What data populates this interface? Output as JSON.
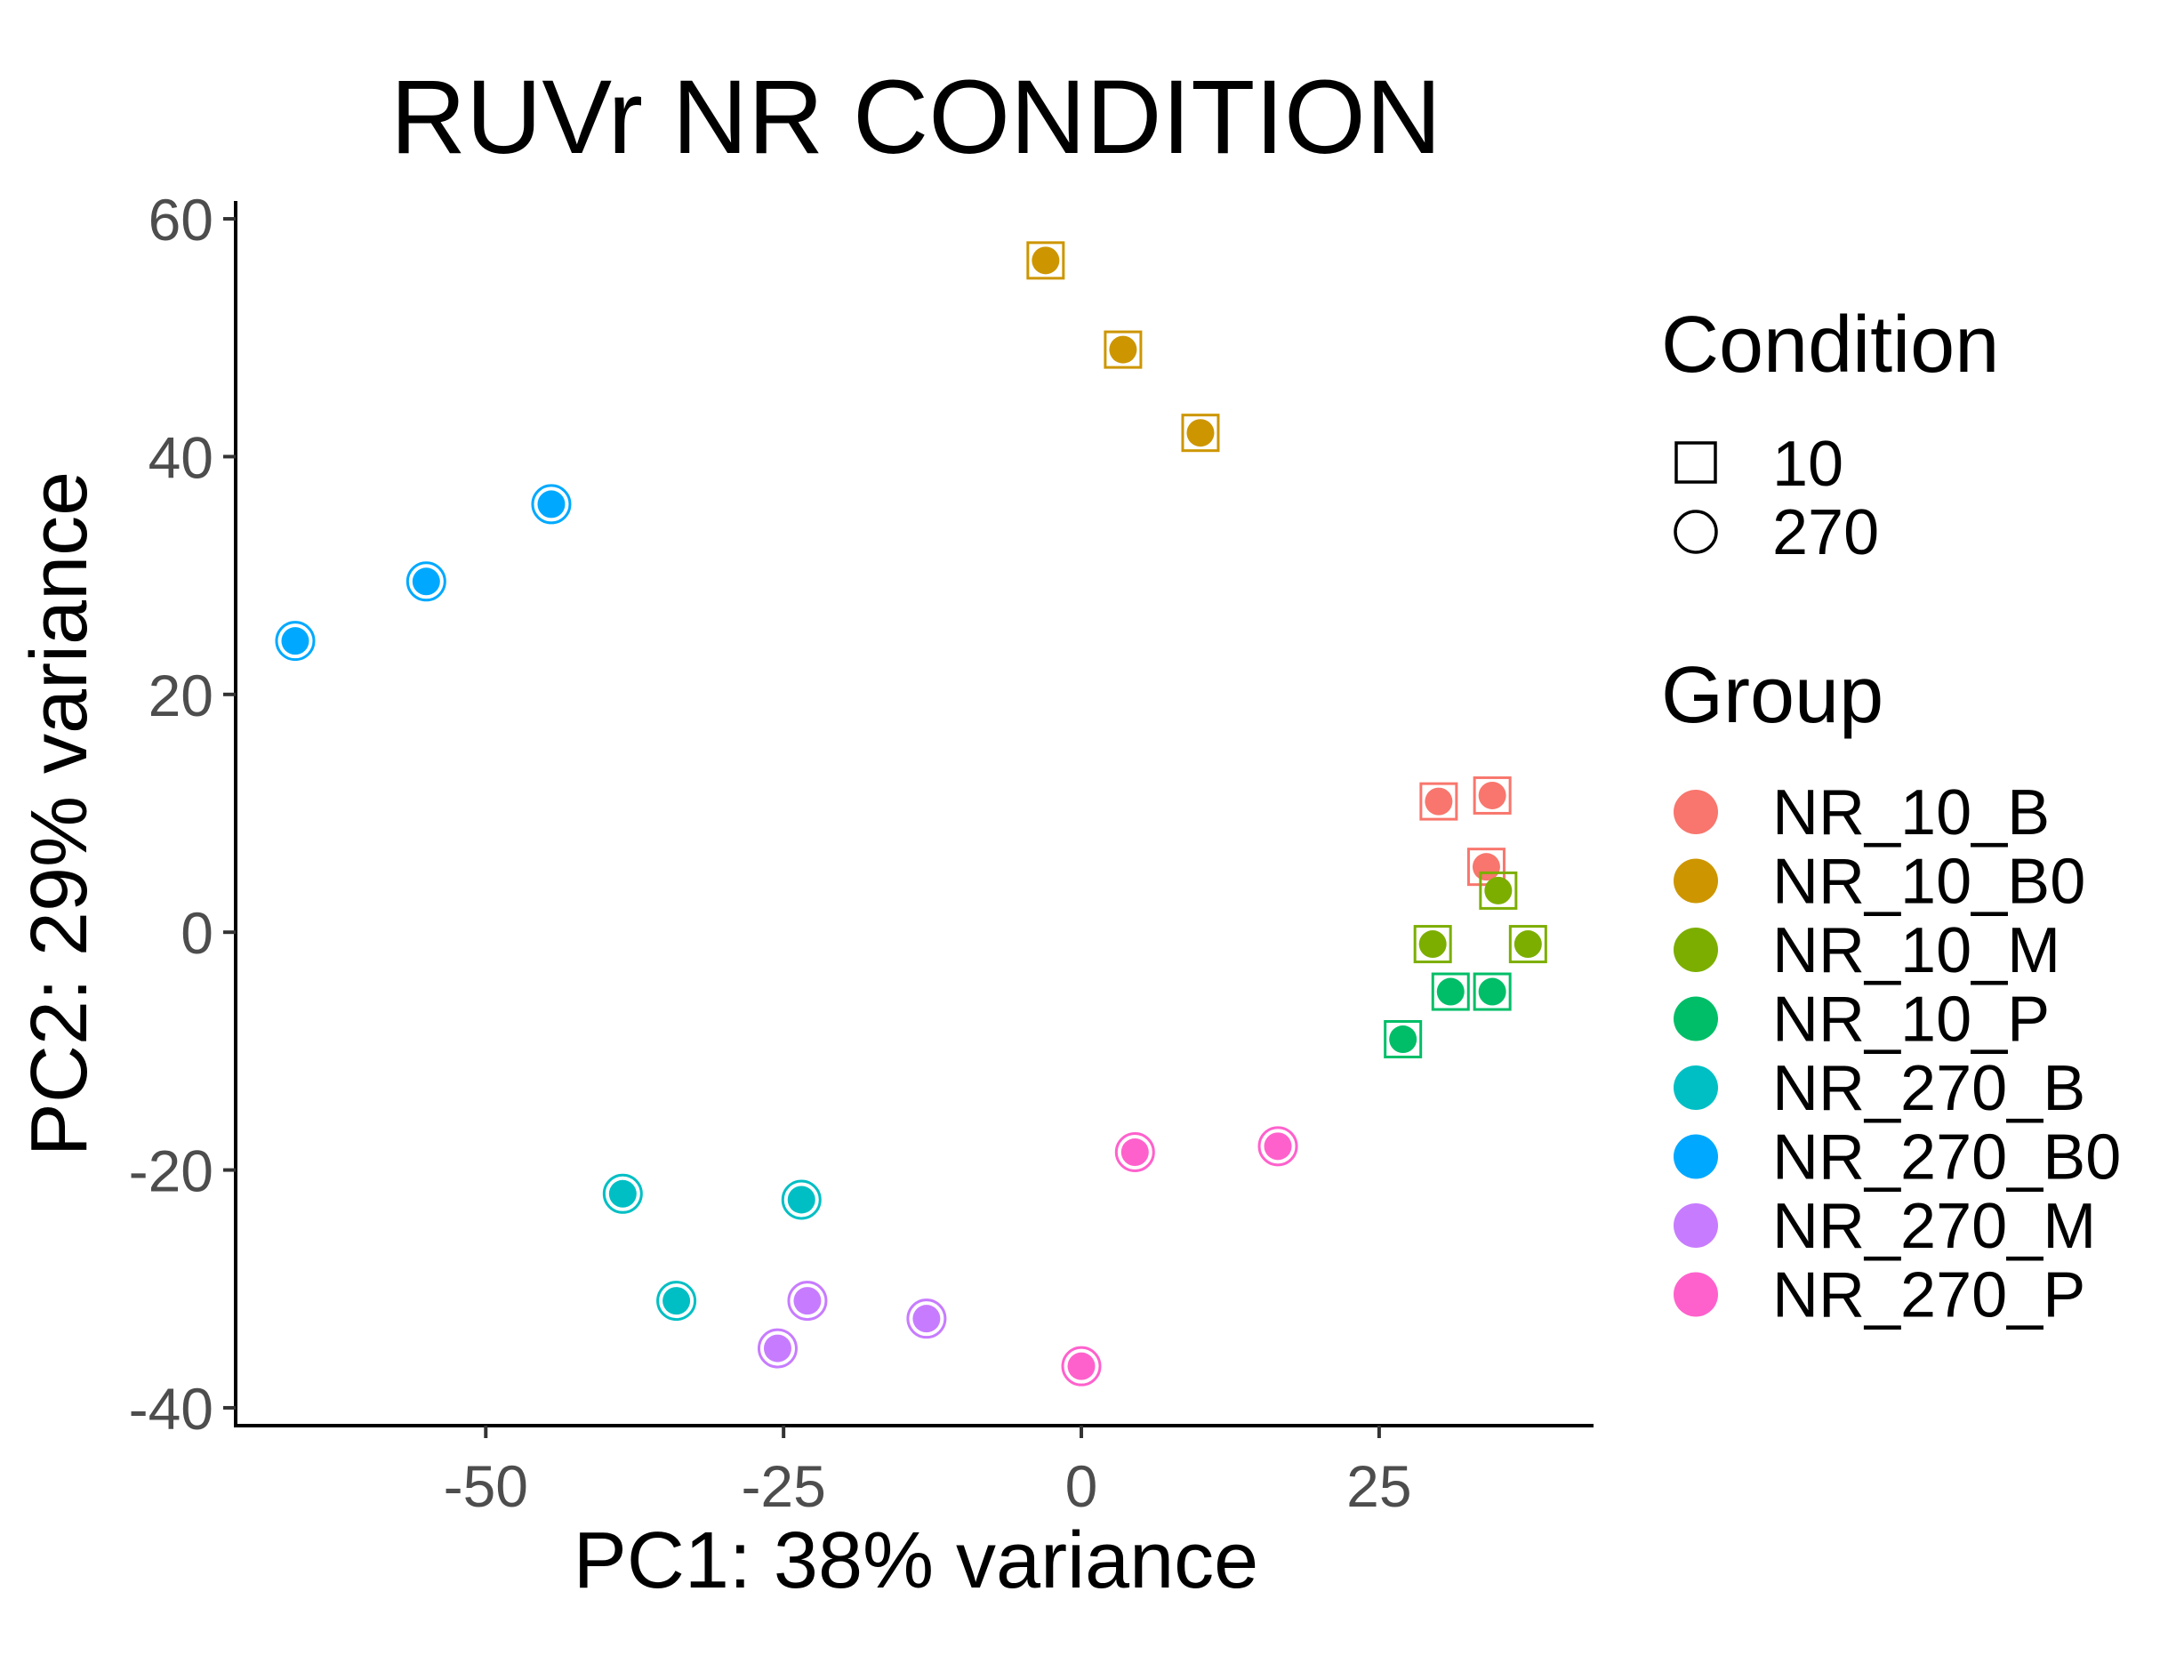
{
  "chart_data": {
    "type": "scatter",
    "title": "RUVr NR CONDITION",
    "xlabel": "PC1: 38% variance",
    "ylabel": "PC2: 29% variance",
    "xlim": [
      -71,
      43
    ],
    "ylim": [
      -41.5,
      61.5
    ],
    "xticks": [
      -50,
      -25,
      0,
      25
    ],
    "xtick_labels": [
      "-50",
      "-25",
      "0",
      "25"
    ],
    "yticks": [
      -40,
      -20,
      0,
      20,
      40,
      60
    ],
    "ytick_labels": [
      "-40",
      "-20",
      "0",
      "20",
      "40",
      "60"
    ],
    "grid": false,
    "legend_position": "right",
    "shape_legend": {
      "title": "Condition",
      "items": [
        {
          "label": "10",
          "shape": "square"
        },
        {
          "label": "270",
          "shape": "circle"
        }
      ]
    },
    "color_legend": {
      "title": "Group",
      "items": [
        {
          "label": "NR_10_B",
          "color": "#F8766D"
        },
        {
          "label": "NR_10_B0",
          "color": "#CD9600"
        },
        {
          "label": "NR_10_M",
          "color": "#7CAE00"
        },
        {
          "label": "NR_10_P",
          "color": "#00BE67"
        },
        {
          "label": "NR_270_B",
          "color": "#00BFC4"
        },
        {
          "label": "NR_270_B0",
          "color": "#00A9FF"
        },
        {
          "label": "NR_270_M",
          "color": "#C77CFF"
        },
        {
          "label": "NR_270_P",
          "color": "#FF61CC"
        }
      ]
    },
    "series": [
      {
        "group": "NR_10_B",
        "condition": "10",
        "points": [
          [
            30,
            11
          ],
          [
            34.5,
            11.5
          ],
          [
            34,
            5.5
          ]
        ]
      },
      {
        "group": "NR_10_B0",
        "condition": "10",
        "points": [
          [
            -3,
            56.5
          ],
          [
            3.5,
            49
          ],
          [
            10,
            42
          ]
        ]
      },
      {
        "group": "NR_10_M",
        "condition": "10",
        "points": [
          [
            29.5,
            -1
          ],
          [
            35,
            3.5
          ],
          [
            37.5,
            -1
          ]
        ]
      },
      {
        "group": "NR_10_P",
        "condition": "10",
        "points": [
          [
            27,
            -9
          ],
          [
            31,
            -5
          ],
          [
            34.5,
            -5
          ]
        ]
      },
      {
        "group": "NR_270_B",
        "condition": "270",
        "points": [
          [
            -38.5,
            -22
          ],
          [
            -34,
            -31
          ],
          [
            -23.5,
            -22.5
          ]
        ]
      },
      {
        "group": "NR_270_B0",
        "condition": "270",
        "points": [
          [
            -66,
            24.5
          ],
          [
            -55,
            29.5
          ],
          [
            -44.5,
            36
          ]
        ]
      },
      {
        "group": "NR_270_M",
        "condition": "270",
        "points": [
          [
            -25.5,
            -35
          ],
          [
            -23,
            -31
          ],
          [
            -13,
            -32.5
          ]
        ]
      },
      {
        "group": "NR_270_P",
        "condition": "270",
        "points": [
          [
            0,
            -36.5
          ],
          [
            4.5,
            -18.5
          ],
          [
            16.5,
            -18
          ]
        ]
      }
    ]
  }
}
